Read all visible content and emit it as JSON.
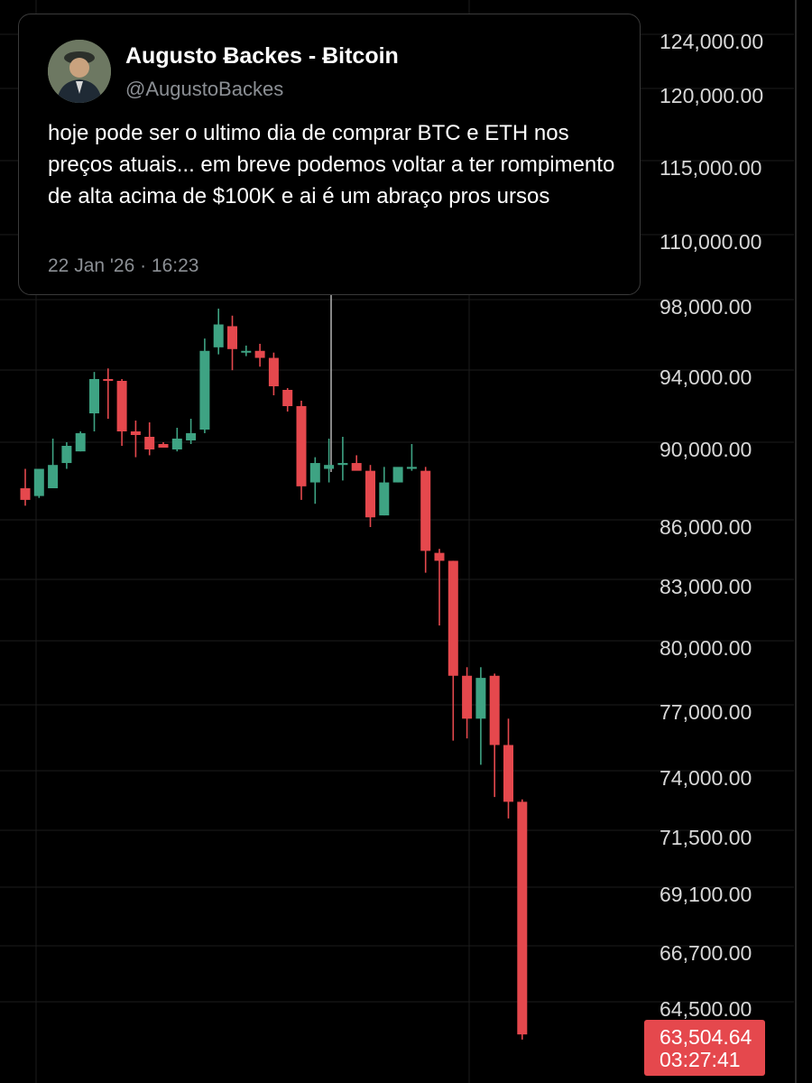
{
  "tweet": {
    "author_name": "Augusto Ƀackes - Ƀitcoin",
    "handle": "@AugustoBackes",
    "text": "hoje pode ser o ultimo dia de comprar BTC e ETH nos preços atuais... em breve podemos voltar a ter rompimento de alta acima de $100K e ai é um abraço pros ursos",
    "timestamp": "22 Jan '26 · 16:23"
  },
  "colors": {
    "background": "#000000",
    "up": "#3ea383",
    "down": "#e5484d",
    "grid": "#1c1c1c",
    "axis_text": "#d8d8d8"
  },
  "chart_data": {
    "type": "candlestick",
    "title": "",
    "xlabel": "",
    "ylabel": "",
    "y_ticks": [
      "124,000.00",
      "120,000.00",
      "115,000.00",
      "110,000.00",
      "98,000.00",
      "94,000.00",
      "90,000.00",
      "86,000.00",
      "83,000.00",
      "80,000.00",
      "77,000.00",
      "74,000.00",
      "71,500.00",
      "69,100.00",
      "66,700.00",
      "64,500.00"
    ],
    "last_price": {
      "price": "63,504.64",
      "countdown": "03:27:41"
    },
    "grid": true,
    "candles": [
      {
        "o": 88000,
        "h": 89000,
        "l": 87100,
        "c": 87400
      },
      {
        "o": 87600,
        "h": 89000,
        "l": 87500,
        "c": 89000
      },
      {
        "o": 88000,
        "h": 90600,
        "l": 88000,
        "c": 89200
      },
      {
        "o": 89300,
        "h": 90400,
        "l": 89000,
        "c": 90200
      },
      {
        "o": 89900,
        "h": 91000,
        "l": 89900,
        "c": 90900
      },
      {
        "o": 92000,
        "h": 94300,
        "l": 91000,
        "c": 93900
      },
      {
        "o": 93900,
        "h": 94500,
        "l": 91700,
        "c": 93800
      },
      {
        "o": 93800,
        "h": 93900,
        "l": 90200,
        "c": 91000
      },
      {
        "o": 91000,
        "h": 91600,
        "l": 89600,
        "c": 90800
      },
      {
        "o": 90700,
        "h": 91500,
        "l": 89700,
        "c": 90000
      },
      {
        "o": 90300,
        "h": 90400,
        "l": 90100,
        "c": 90100
      },
      {
        "o": 90000,
        "h": 91200,
        "l": 89900,
        "c": 90600
      },
      {
        "o": 90500,
        "h": 91700,
        "l": 90300,
        "c": 90900
      },
      {
        "o": 91100,
        "h": 96200,
        "l": 90900,
        "c": 95500
      },
      {
        "o": 95700,
        "h": 97900,
        "l": 95300,
        "c": 97000
      },
      {
        "o": 96900,
        "h": 97500,
        "l": 94400,
        "c": 95600
      },
      {
        "o": 95400,
        "h": 95800,
        "l": 95200,
        "c": 95500
      },
      {
        "o": 95500,
        "h": 95900,
        "l": 94600,
        "c": 95100
      },
      {
        "o": 95100,
        "h": 95400,
        "l": 93000,
        "c": 93500
      },
      {
        "o": 93300,
        "h": 93400,
        "l": 92100,
        "c": 92400
      },
      {
        "o": 92400,
        "h": 92700,
        "l": 87400,
        "c": 88100
      },
      {
        "o": 88300,
        "h": 89600,
        "l": 87200,
        "c": 89300
      },
      {
        "o": 89000,
        "h": 90600,
        "l": 88300,
        "c": 89200
      },
      {
        "o": 89200,
        "h": 90700,
        "l": 88400,
        "c": 89300
      },
      {
        "o": 89300,
        "h": 89700,
        "l": 89100,
        "c": 88900
      },
      {
        "o": 88900,
        "h": 89200,
        "l": 86000,
        "c": 86500
      },
      {
        "o": 86600,
        "h": 89100,
        "l": 86600,
        "c": 88300
      },
      {
        "o": 88300,
        "h": 89000,
        "l": 88300,
        "c": 89100
      },
      {
        "o": 89000,
        "h": 90300,
        "l": 88900,
        "c": 89100
      },
      {
        "o": 88900,
        "h": 89100,
        "l": 83700,
        "c": 84800
      },
      {
        "o": 84700,
        "h": 84900,
        "l": 81100,
        "c": 84300
      },
      {
        "o": 84300,
        "h": 84300,
        "l": 75700,
        "c": 78700
      },
      {
        "o": 78700,
        "h": 79100,
        "l": 75800,
        "c": 76700
      },
      {
        "o": 76700,
        "h": 79100,
        "l": 74600,
        "c": 78600
      },
      {
        "o": 78700,
        "h": 78800,
        "l": 73200,
        "c": 75500
      },
      {
        "o": 75500,
        "h": 76700,
        "l": 72300,
        "c": 73000
      },
      {
        "o": 73000,
        "h": 73100,
        "l": 63300,
        "c": 63500
      }
    ]
  }
}
